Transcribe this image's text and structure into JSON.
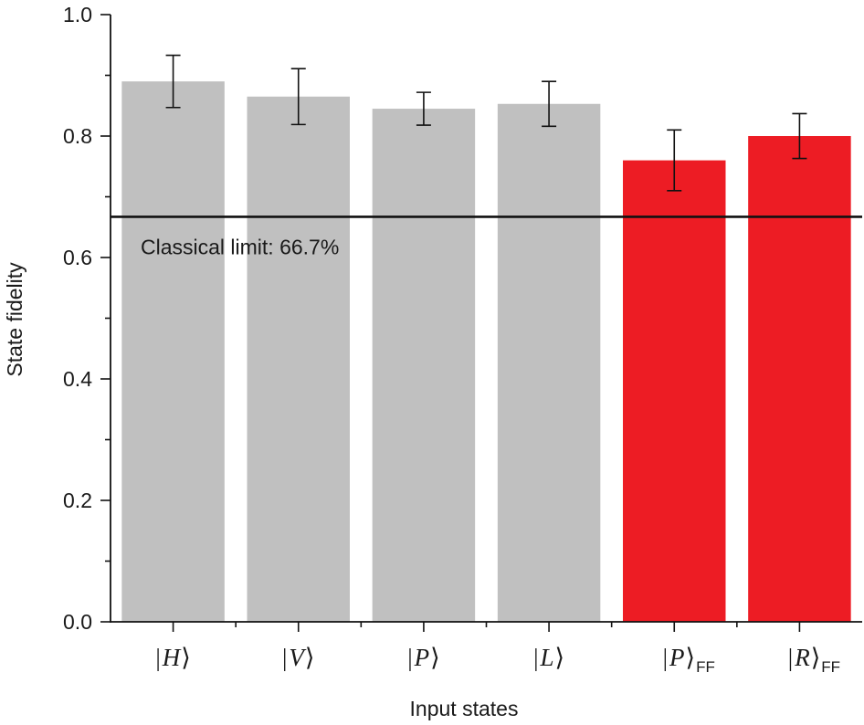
{
  "chart_data": {
    "type": "bar",
    "title": "",
    "xlabel": "Input states",
    "ylabel": "State fidelity",
    "ylim": [
      0,
      1.0
    ],
    "yticks": [
      "0.0",
      "0.2",
      "0.4",
      "0.6",
      "0.8",
      "1.0"
    ],
    "grid": false,
    "categories": [
      {
        "bra": "|",
        "state": "H",
        "ket": "⟩",
        "sub": ""
      },
      {
        "bra": "|",
        "state": "V",
        "ket": "⟩",
        "sub": ""
      },
      {
        "bra": "|",
        "state": "P",
        "ket": "⟩",
        "sub": ""
      },
      {
        "bra": "|",
        "state": "L",
        "ket": "⟩",
        "sub": ""
      },
      {
        "bra": "|",
        "state": "P",
        "ket": "⟩",
        "sub": "FF"
      },
      {
        "bra": "|",
        "state": "R",
        "ket": "⟩",
        "sub": "FF"
      }
    ],
    "values": [
      0.89,
      0.865,
      0.845,
      0.853,
      0.76,
      0.8
    ],
    "errors": [
      0.043,
      0.046,
      0.027,
      0.037,
      0.05,
      0.037
    ],
    "colors": [
      "#c0c0c0",
      "#c0c0c0",
      "#c0c0c0",
      "#c0c0c0",
      "#ed1c24",
      "#ed1c24"
    ],
    "reference_line": {
      "value": 0.667,
      "label": "Classical limit: 66.7%"
    }
  }
}
